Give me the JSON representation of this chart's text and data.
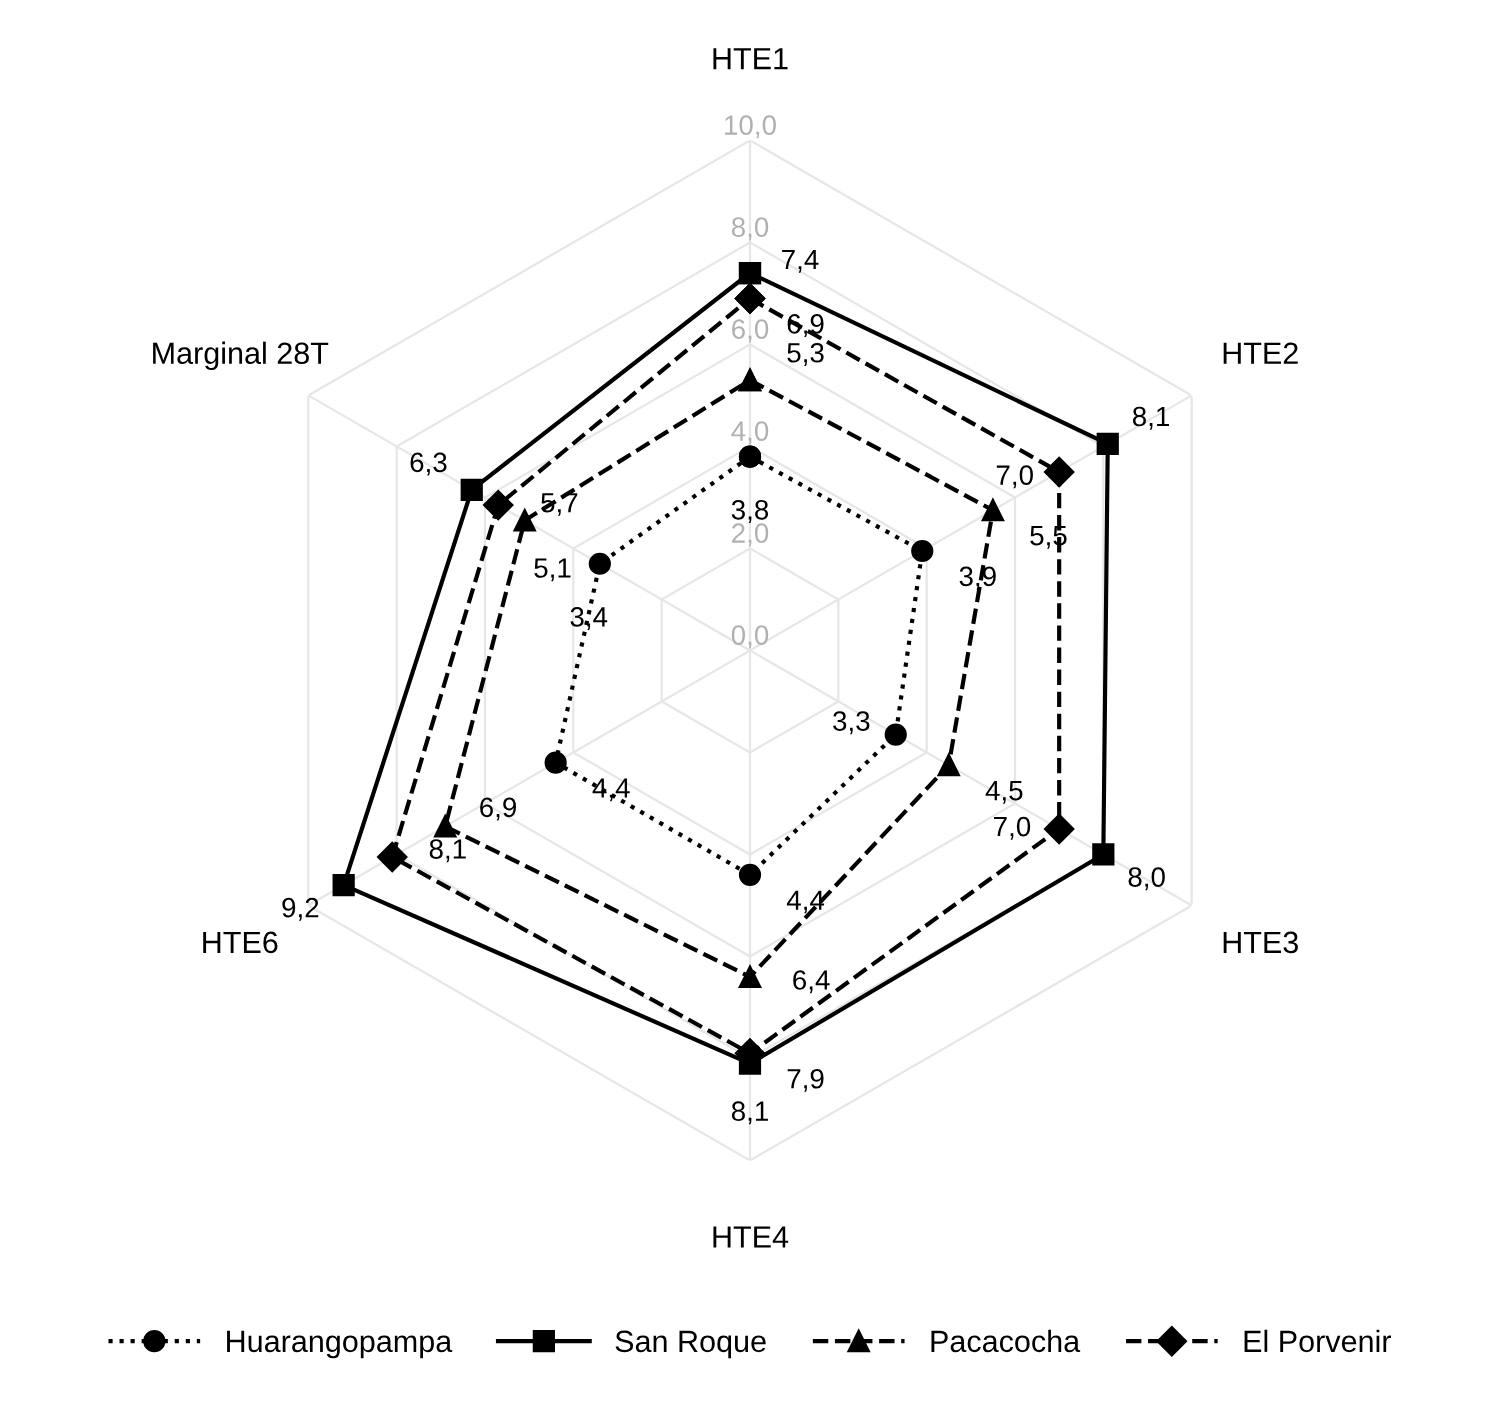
{
  "chart_data": {
    "type": "radar",
    "categories": [
      "HTE1",
      "HTE2",
      "HTE3",
      "HTE4",
      "HTE6",
      "Marginal 28T"
    ],
    "ylim": [
      0,
      10
    ],
    "yticks": [
      {
        "value": 0,
        "label": "0,0"
      },
      {
        "value": 2,
        "label": "2,0"
      },
      {
        "value": 4,
        "label": "4,0"
      },
      {
        "value": 6,
        "label": "6,0"
      },
      {
        "value": 8,
        "label": "8,0"
      },
      {
        "value": 10,
        "label": "10,0"
      }
    ],
    "grid": true,
    "legend": "bottom",
    "series": [
      {
        "name": "Huarangopampa",
        "color": "#000000",
        "marker": "circle",
        "line_style": "dotted",
        "values": [
          3.8,
          3.9,
          3.3,
          4.4,
          4.4,
          3.4
        ],
        "value_labels": [
          "3,8",
          "3,9",
          "3,3",
          "4,4",
          "4,4",
          "3,4"
        ]
      },
      {
        "name": "San Roque",
        "color": "#000000",
        "marker": "square",
        "line_style": "solid",
        "values": [
          7.4,
          8.1,
          8.0,
          8.1,
          9.2,
          6.3
        ],
        "value_labels": [
          "7,4",
          "8,1",
          "8,0",
          "8,1",
          "9,2",
          "6,3"
        ]
      },
      {
        "name": "Pacacocha",
        "color": "#000000",
        "marker": "triangle",
        "line_style": "dashed",
        "values": [
          5.3,
          5.5,
          4.5,
          6.4,
          6.9,
          5.1
        ],
        "value_labels": [
          "5,3",
          "5,5",
          "4,5",
          "6,4",
          "6,9",
          "5,1"
        ]
      },
      {
        "name": "El Porvenir",
        "color": "#000000",
        "marker": "diamond",
        "line_style": "dashed",
        "values": [
          6.9,
          7.0,
          7.0,
          7.9,
          8.1,
          5.7
        ],
        "value_labels": [
          "6,9",
          "7,0",
          "7,0",
          "7,9",
          "8,1",
          "5,7"
        ]
      }
    ]
  }
}
